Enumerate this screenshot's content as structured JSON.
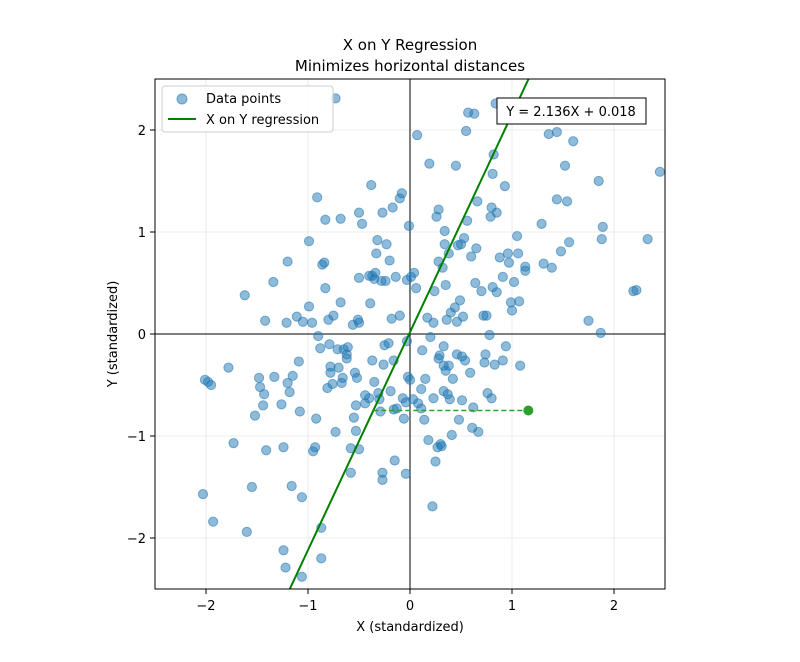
{
  "chart_data": {
    "type": "scatter",
    "title": "X on Y Regression",
    "subtitle": "Minimizes horizontal distances",
    "xlabel": "X (standardized)",
    "ylabel": "Y (standardized)",
    "xlim": [
      -2.5,
      2.5
    ],
    "ylim": [
      -2.5,
      2.5
    ],
    "xticks": [
      -2,
      -1,
      0,
      1,
      2
    ],
    "yticks": [
      -2,
      -1,
      0,
      1,
      2
    ],
    "xtick_labels": [
      "−2",
      "−1",
      "0",
      "1",
      "2"
    ],
    "ytick_labels": [
      "−2",
      "−1",
      "0",
      "1",
      "2"
    ],
    "grid": true,
    "legend_position": "top-left",
    "colors": {
      "points": "#1f77b4",
      "line": "#008000",
      "highlight": "#2ca02c"
    },
    "series": [
      {
        "name": "Data points",
        "kind": "scatter",
        "points": [
          [
            -2.03,
            -1.57
          ],
          [
            -1.93,
            -1.84
          ],
          [
            -2.01,
            -0.45
          ],
          [
            -1.98,
            -0.47
          ],
          [
            -1.95,
            -0.5
          ],
          [
            -1.78,
            -0.33
          ],
          [
            -1.73,
            -1.07
          ],
          [
            -1.62,
            0.38
          ],
          [
            -1.6,
            -1.94
          ],
          [
            -1.55,
            -1.5
          ],
          [
            -1.52,
            -0.8
          ],
          [
            -1.48,
            -0.43
          ],
          [
            -1.47,
            -0.52
          ],
          [
            -1.44,
            -0.7
          ],
          [
            -1.43,
            -0.59
          ],
          [
            -1.42,
            0.13
          ],
          [
            -1.41,
            -1.14
          ],
          [
            -1.34,
            0.51
          ],
          [
            -1.33,
            -0.42
          ],
          [
            -1.26,
            -0.69
          ],
          [
            -1.24,
            -1.11
          ],
          [
            -1.24,
            -2.12
          ],
          [
            -1.22,
            -2.29
          ],
          [
            -1.21,
            0.11
          ],
          [
            -1.2,
            0.71
          ],
          [
            -1.2,
            -0.48
          ],
          [
            -1.18,
            -0.57
          ],
          [
            -1.16,
            -1.49
          ],
          [
            -1.15,
            -0.41
          ],
          [
            -1.11,
            0.17
          ],
          [
            -1.09,
            -0.27
          ],
          [
            -1.08,
            -0.76
          ],
          [
            -1.06,
            -1.6
          ],
          [
            -1.06,
            -2.38
          ],
          [
            -1.05,
            0.12
          ],
          [
            -0.99,
            0.91
          ],
          [
            -0.99,
            0.27
          ],
          [
            -0.96,
            0.11
          ],
          [
            -0.95,
            -1.15
          ],
          [
            -0.93,
            -1.11
          ],
          [
            -0.92,
            -0.83
          ],
          [
            -0.91,
            1.34
          ],
          [
            -0.9,
            -0.02
          ],
          [
            -0.88,
            -0.14
          ],
          [
            -0.87,
            -1.9
          ],
          [
            -0.87,
            -2.2
          ],
          [
            -0.86,
            0.68
          ],
          [
            -0.84,
            0.7
          ],
          [
            -0.83,
            1.12
          ],
          [
            -0.83,
            0.45
          ],
          [
            -0.81,
            -0.53
          ],
          [
            -0.8,
            0.14
          ],
          [
            -0.79,
            -0.1
          ],
          [
            -0.78,
            -0.38
          ],
          [
            -0.78,
            -0.32
          ],
          [
            -0.76,
            -0.49
          ],
          [
            -0.75,
            0.18
          ],
          [
            -0.73,
            2.31
          ],
          [
            -0.73,
            -0.96
          ],
          [
            -0.71,
            -0.15
          ],
          [
            -0.7,
            -0.33
          ],
          [
            -0.68,
            0.31
          ],
          [
            -0.68,
            1.13
          ],
          [
            -0.67,
            -0.48
          ],
          [
            -0.66,
            -0.43
          ],
          [
            -0.65,
            -0.15
          ],
          [
            -0.62,
            -0.2
          ],
          [
            -0.62,
            -0.24
          ],
          [
            -0.61,
            -0.13
          ],
          [
            -0.58,
            -1.36
          ],
          [
            -0.58,
            -1.12
          ],
          [
            -0.56,
            0.09
          ],
          [
            -0.55,
            -0.82
          ],
          [
            -0.54,
            -0.38
          ],
          [
            -0.53,
            -0.95
          ],
          [
            -0.53,
            -0.7
          ],
          [
            -0.52,
            -0.43
          ],
          [
            -0.51,
            0.14
          ],
          [
            -0.5,
            1.19
          ],
          [
            -0.5,
            -1.13
          ],
          [
            -0.5,
            0.55
          ],
          [
            -0.5,
            0.11
          ],
          [
            -0.47,
            1.08
          ],
          [
            -0.44,
            -0.6
          ],
          [
            -0.44,
            -0.68
          ],
          [
            -0.4,
            -0.63
          ],
          [
            -0.4,
            0.57
          ],
          [
            -0.39,
            0.3
          ],
          [
            -0.38,
            1.46
          ],
          [
            -0.37,
            0.57
          ],
          [
            -0.37,
            -0.26
          ],
          [
            -0.35,
            -0.47
          ],
          [
            -0.35,
            0.54
          ],
          [
            -0.34,
            0.6
          ],
          [
            -0.33,
            0.79
          ],
          [
            -0.32,
            0.92
          ],
          [
            -0.31,
            -0.58
          ],
          [
            -0.3,
            -0.64
          ],
          [
            -0.29,
            -0.76
          ],
          [
            -0.28,
            0.52
          ],
          [
            -0.27,
            -1.36
          ],
          [
            -0.27,
            -1.43
          ],
          [
            -0.27,
            1.19
          ],
          [
            -0.26,
            -0.3
          ],
          [
            -0.25,
            -0.11
          ],
          [
            -0.24,
            0.52
          ],
          [
            -0.23,
            0.88
          ],
          [
            -0.21,
            -0.09
          ],
          [
            -0.2,
            0.72
          ],
          [
            -0.19,
            -0.56
          ],
          [
            -0.18,
            0.15
          ],
          [
            -0.17,
            1.24
          ],
          [
            -0.16,
            -0.74
          ],
          [
            -0.16,
            -0.26
          ],
          [
            -0.15,
            -1.24
          ],
          [
            -0.14,
            0.56
          ],
          [
            -0.13,
            -0.73
          ],
          [
            -0.1,
            1.33
          ],
          [
            -0.1,
            0.18
          ],
          [
            -0.08,
            1.38
          ],
          [
            -0.07,
            -0.63
          ],
          [
            -0.06,
            -0.83
          ],
          [
            -0.04,
            -1.37
          ],
          [
            -0.04,
            -0.67
          ],
          [
            -0.03,
            -0.07
          ],
          [
            -0.03,
            0.53
          ],
          [
            -0.02,
            -0.42
          ],
          [
            -0.01,
            1.06
          ],
          [
            0.0,
            -0.45
          ],
          [
            0.01,
            0.56
          ],
          [
            0.03,
            -0.64
          ],
          [
            0.04,
            0.6
          ],
          [
            0.06,
            0.45
          ],
          [
            0.07,
            1.95
          ],
          [
            0.08,
            -0.68
          ],
          [
            0.11,
            -0.73
          ],
          [
            0.11,
            -0.54
          ],
          [
            0.12,
            -0.16
          ],
          [
            0.14,
            -0.84
          ],
          [
            0.15,
            -0.44
          ],
          [
            0.17,
            0.16
          ],
          [
            0.18,
            -1.04
          ],
          [
            0.19,
            1.67
          ],
          [
            0.2,
            -0.03
          ],
          [
            0.22,
            -1.69
          ],
          [
            0.23,
            -0.63
          ],
          [
            0.23,
            0.11
          ],
          [
            0.24,
            0.42
          ],
          [
            0.25,
            -1.25
          ],
          [
            0.26,
            1.15
          ],
          [
            0.27,
            -1.11
          ],
          [
            0.28,
            1.22
          ],
          [
            0.28,
            0.71
          ],
          [
            0.28,
            -0.24
          ],
          [
            0.29,
            -0.21
          ],
          [
            0.3,
            -1.08
          ],
          [
            0.31,
            -1.1
          ],
          [
            0.32,
            0.65
          ],
          [
            0.33,
            -0.56
          ],
          [
            0.33,
            -0.31
          ],
          [
            0.33,
            -0.12
          ],
          [
            0.34,
            1.01
          ],
          [
            0.34,
            0.88
          ],
          [
            0.35,
            0.48
          ],
          [
            0.35,
            -0.36
          ],
          [
            0.36,
            0.14
          ],
          [
            0.37,
            -0.59
          ],
          [
            0.38,
            0.79
          ],
          [
            0.38,
            -0.31
          ],
          [
            0.39,
            -0.64
          ],
          [
            0.4,
            0.21
          ],
          [
            0.41,
            -0.99
          ],
          [
            0.42,
            -0.44
          ],
          [
            0.44,
            0.26
          ],
          [
            0.45,
            1.65
          ],
          [
            0.46,
            -0.2
          ],
          [
            0.46,
            0.12
          ],
          [
            0.47,
            0.87
          ],
          [
            0.48,
            -0.84
          ],
          [
            0.49,
            0.33
          ],
          [
            0.5,
            0.88
          ],
          [
            0.51,
            -0.22
          ],
          [
            0.51,
            -0.65
          ],
          [
            0.52,
            0.17
          ],
          [
            0.53,
            0.94
          ],
          [
            0.54,
            -0.26
          ],
          [
            0.55,
            1.99
          ],
          [
            0.56,
            1.11
          ],
          [
            0.57,
            2.17
          ],
          [
            0.59,
            -0.38
          ],
          [
            0.6,
            0.76
          ],
          [
            0.61,
            -0.92
          ],
          [
            0.62,
            -0.72
          ],
          [
            0.63,
            2.16
          ],
          [
            0.64,
            0.5
          ],
          [
            0.65,
            0.84
          ],
          [
            0.66,
            1.3
          ],
          [
            0.67,
            -0.96
          ],
          [
            0.7,
            0.42
          ],
          [
            0.72,
            0.18
          ],
          [
            0.73,
            -0.28
          ],
          [
            0.74,
            -0.2
          ],
          [
            0.75,
            0.18
          ],
          [
            0.76,
            -0.58
          ],
          [
            0.78,
            -0.01
          ],
          [
            0.79,
            1.15
          ],
          [
            0.8,
            -0.63
          ],
          [
            0.8,
            1.24
          ],
          [
            0.81,
            1.57
          ],
          [
            0.81,
            0.46
          ],
          [
            0.82,
            1.76
          ],
          [
            0.83,
            -0.3
          ],
          [
            0.84,
            2.26
          ],
          [
            0.85,
            0.41
          ],
          [
            0.85,
            1.19
          ],
          [
            0.88,
            0.75
          ],
          [
            0.91,
            -0.26
          ],
          [
            0.91,
            0.56
          ],
          [
            0.93,
            1.45
          ],
          [
            0.94,
            -0.12
          ],
          [
            0.96,
            0.79
          ],
          [
            0.97,
            0.7
          ],
          [
            0.99,
            0.31
          ],
          [
            1.0,
            0.23
          ],
          [
            1.02,
            0.51
          ],
          [
            1.05,
            0.96
          ],
          [
            1.06,
            0.79
          ],
          [
            1.07,
            0.32
          ],
          [
            1.08,
            -0.31
          ],
          [
            1.13,
            0.62
          ],
          [
            1.13,
            0.66
          ],
          [
            1.29,
            1.08
          ],
          [
            1.31,
            0.69
          ],
          [
            1.36,
            1.96
          ],
          [
            1.39,
            0.65
          ],
          [
            1.44,
            1.98
          ],
          [
            1.44,
            1.32
          ],
          [
            1.48,
            0.81
          ],
          [
            1.52,
            1.65
          ],
          [
            1.54,
            1.3
          ],
          [
            1.56,
            0.9
          ],
          [
            1.6,
            1.89
          ],
          [
            1.75,
            0.13
          ],
          [
            1.85,
            1.5
          ],
          [
            1.87,
            0.01
          ],
          [
            1.88,
            0.93
          ],
          [
            1.89,
            1.05
          ],
          [
            2.19,
            0.42
          ],
          [
            2.22,
            0.43
          ],
          [
            2.33,
            0.93
          ],
          [
            2.45,
            1.59
          ]
        ]
      },
      {
        "name": "X on Y regression",
        "kind": "line",
        "equation": {
          "slope": 2.136,
          "intercept": 0.018
        }
      }
    ],
    "annotation": "Y = 2.136X + 0.018",
    "highlighted_point": [
      1.16,
      -0.75
    ],
    "horizontal_residual_to_line": true
  }
}
